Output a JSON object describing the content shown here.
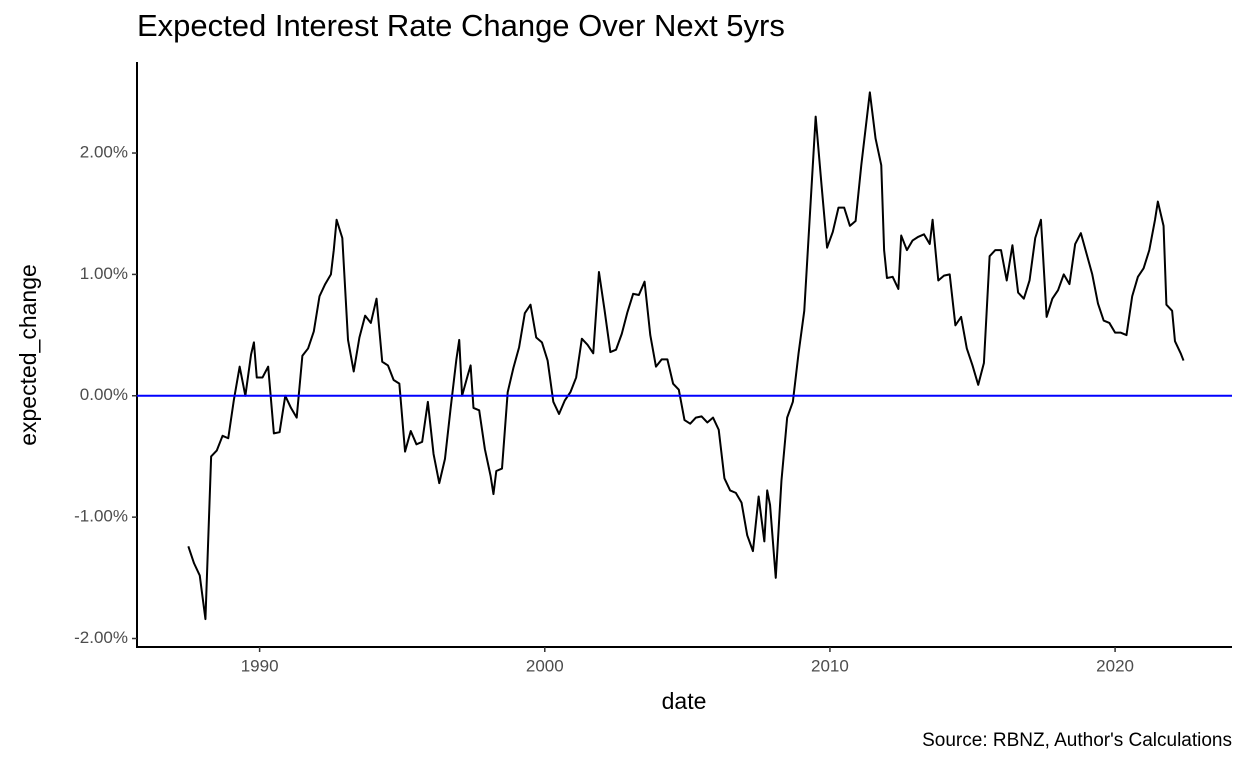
{
  "chart_data": {
    "type": "line",
    "title": "Expected Interest Rate Change Over Next 5yrs",
    "x_label": "date",
    "y_label": "expected_change",
    "caption": "Source: RBNZ, Author's Calculations",
    "color": "#000000",
    "hline": 0,
    "hline_color": "#0000ff",
    "grid": false,
    "xlim": [
      1985.7,
      2024.1
    ],
    "xticks": [
      1990,
      2000,
      2010,
      2020
    ],
    "ylim": [
      -2.07,
      2.75
    ],
    "yticks": [
      {
        "value": -2,
        "label": "-2.00%"
      },
      {
        "value": -1,
        "label": "-1.00%"
      },
      {
        "value": 0,
        "label": "0.00%"
      },
      {
        "value": 1,
        "label": "1.00%"
      },
      {
        "value": 2,
        "label": "2.00%"
      }
    ],
    "x": [
      1987.5,
      1987.7,
      1987.9,
      1988.1,
      1988.3,
      1988.5,
      1988.7,
      1988.9,
      1989.1,
      1989.3,
      1989.5,
      1989.7,
      1989.8,
      1989.9,
      1990.1,
      1990.3,
      1990.5,
      1990.7,
      1990.9,
      1991.1,
      1991.3,
      1991.5,
      1991.7,
      1991.9,
      1992.1,
      1992.3,
      1992.5,
      1992.6,
      1992.7,
      1992.9,
      1993.1,
      1993.3,
      1993.5,
      1993.7,
      1993.9,
      1994.1,
      1994.3,
      1994.5,
      1994.7,
      1994.9,
      1995.1,
      1995.3,
      1995.5,
      1995.7,
      1995.9,
      1996.1,
      1996.3,
      1996.5,
      1996.7,
      1996.9,
      1997.0,
      1997.1,
      1997.3,
      1997.4,
      1997.5,
      1997.7,
      1997.9,
      1998.1,
      1998.2,
      1998.3,
      1998.5,
      1998.7,
      1998.9,
      1999.1,
      1999.3,
      1999.5,
      1999.7,
      1999.9,
      2000.1,
      2000.3,
      2000.5,
      2000.7,
      2000.9,
      2001.1,
      2001.3,
      2001.5,
      2001.7,
      2001.9,
      2002.1,
      2002.3,
      2002.5,
      2002.7,
      2002.9,
      2003.1,
      2003.3,
      2003.5,
      2003.7,
      2003.9,
      2004.1,
      2004.3,
      2004.5,
      2004.7,
      2004.9,
      2005.1,
      2005.3,
      2005.5,
      2005.7,
      2005.9,
      2006.1,
      2006.3,
      2006.5,
      2006.7,
      2006.9,
      2007.1,
      2007.3,
      2007.5,
      2007.7,
      2007.8,
      2007.9,
      2008.1,
      2008.3,
      2008.5,
      2008.7,
      2008.9,
      2009.1,
      2009.3,
      2009.5,
      2009.7,
      2009.9,
      2010.1,
      2010.3,
      2010.5,
      2010.7,
      2010.9,
      2011.1,
      2011.3,
      2011.4,
      2011.6,
      2011.8,
      2011.9,
      2012.0,
      2012.2,
      2012.4,
      2012.5,
      2012.7,
      2012.9,
      2013.1,
      2013.3,
      2013.5,
      2013.6,
      2013.8,
      2014.0,
      2014.2,
      2014.4,
      2014.6,
      2014.8,
      2015.0,
      2015.2,
      2015.4,
      2015.6,
      2015.8,
      2016.0,
      2016.2,
      2016.4,
      2016.6,
      2016.8,
      2017.0,
      2017.2,
      2017.4,
      2017.6,
      2017.8,
      2018.0,
      2018.2,
      2018.4,
      2018.6,
      2018.8,
      2019.0,
      2019.2,
      2019.4,
      2019.6,
      2019.8,
      2020.0,
      2020.2,
      2020.4,
      2020.6,
      2020.8,
      2021.0,
      2021.2,
      2021.4,
      2021.5,
      2021.7,
      2021.8,
      2022.0,
      2022.1,
      2022.3,
      2022.4
    ],
    "values": [
      -1.24,
      -1.38,
      -1.48,
      -1.84,
      -0.5,
      -0.45,
      -0.33,
      -0.35,
      -0.03,
      0.24,
      0.0,
      0.34,
      0.44,
      0.15,
      0.15,
      0.24,
      -0.31,
      -0.3,
      0.0,
      -0.1,
      -0.18,
      0.33,
      0.39,
      0.53,
      0.82,
      0.92,
      1.0,
      1.2,
      1.45,
      1.3,
      0.46,
      0.2,
      0.48,
      0.66,
      0.6,
      0.8,
      0.28,
      0.25,
      0.13,
      0.1,
      -0.46,
      -0.29,
      -0.4,
      -0.38,
      -0.05,
      -0.48,
      -0.72,
      -0.52,
      -0.1,
      0.3,
      0.46,
      0.0,
      0.17,
      0.25,
      -0.1,
      -0.12,
      -0.44,
      -0.66,
      -0.81,
      -0.62,
      -0.6,
      0.03,
      0.23,
      0.4,
      0.68,
      0.75,
      0.48,
      0.44,
      0.29,
      -0.05,
      -0.15,
      -0.04,
      0.03,
      0.15,
      0.47,
      0.42,
      0.35,
      1.02,
      0.7,
      0.36,
      0.38,
      0.51,
      0.69,
      0.84,
      0.83,
      0.94,
      0.5,
      0.24,
      0.3,
      0.3,
      0.1,
      0.05,
      -0.2,
      -0.23,
      -0.18,
      -0.17,
      -0.22,
      -0.18,
      -0.28,
      -0.68,
      -0.78,
      -0.8,
      -0.88,
      -1.15,
      -1.28,
      -0.83,
      -1.2,
      -0.78,
      -0.9,
      -1.5,
      -0.7,
      -0.18,
      -0.05,
      0.35,
      0.7,
      1.5,
      2.3,
      1.75,
      1.22,
      1.35,
      1.55,
      1.55,
      1.4,
      1.44,
      1.9,
      2.3,
      2.5,
      2.12,
      1.9,
      1.2,
      0.97,
      0.98,
      0.88,
      1.32,
      1.2,
      1.28,
      1.31,
      1.33,
      1.25,
      1.45,
      0.95,
      0.99,
      1.0,
      0.58,
      0.65,
      0.39,
      0.25,
      0.09,
      0.27,
      1.15,
      1.2,
      1.2,
      0.95,
      1.24,
      0.85,
      0.8,
      0.95,
      1.3,
      1.45,
      0.65,
      0.8,
      0.87,
      1.0,
      0.92,
      1.25,
      1.34,
      1.17,
      1.0,
      0.76,
      0.62,
      0.6,
      0.52,
      0.52,
      0.5,
      0.82,
      0.98,
      1.05,
      1.2,
      1.45,
      1.6,
      1.4,
      0.75,
      0.7,
      0.45,
      0.35,
      0.29
    ]
  }
}
